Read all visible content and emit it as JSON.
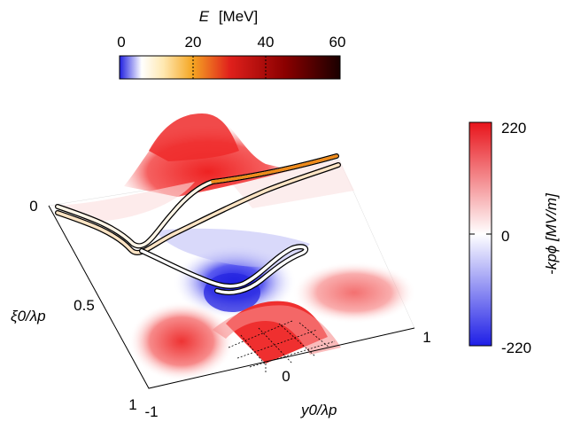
{
  "chart_data": {
    "type": "heatmap",
    "title": "",
    "description_axes": {
      "xlabel": "y0/λp",
      "ylabel": "ξ0/λp",
      "x_ticks": [
        "-1",
        "0",
        "1"
      ],
      "y_ticks": [
        "0",
        "0.5",
        "1"
      ],
      "xlim": [
        -1,
        1
      ],
      "ylim": [
        0,
        1
      ]
    },
    "colorbar_potential": {
      "label": "-kpϕ [MV/m]",
      "ticks": [
        "220",
        "0",
        "-220"
      ],
      "range": [
        -220,
        220
      ],
      "colors": {
        "max": "#e8141b",
        "mid": "#ffffff",
        "min": "#1e1ee6"
      }
    },
    "colorbar_energy": {
      "label_symbol": "E",
      "label_unit": "[MeV]",
      "ticks": [
        "0",
        "20",
        "40",
        "60"
      ],
      "range": [
        0,
        60
      ],
      "colors": [
        "#1f1fe0",
        "#ffffff",
        "#f5a623",
        "#e0201c",
        "#8b0000",
        "#1a0000"
      ]
    },
    "trajectories": [
      {
        "name": "",
        "energy_MeV": 14,
        "description": "upper trajectory, ends high energy"
      },
      {
        "name": "",
        "energy_MeV": 6,
        "description": "second upper trajectory"
      },
      {
        "name": "",
        "energy_MeV": 1,
        "description": "trapped trajectory near center"
      }
    ]
  }
}
